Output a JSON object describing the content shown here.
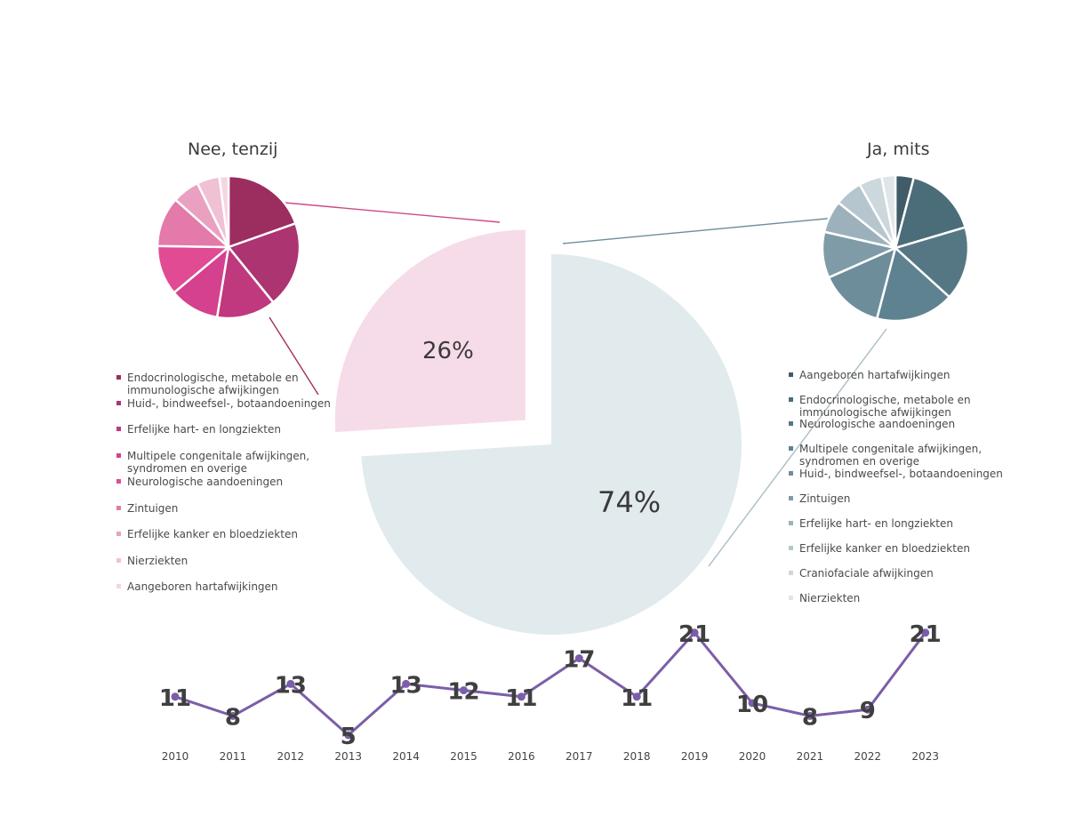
{
  "chart_data": [
    {
      "type": "pie",
      "title": "",
      "slices": [
        {
          "label": "",
          "value": 26,
          "display": "26%",
          "color": "#f6dbe8"
        },
        {
          "label": "",
          "value": 74,
          "display": "74%",
          "color": "#e1eaed"
        }
      ]
    },
    {
      "type": "pie",
      "title": "Nee, tenzij",
      "colors": [
        "#9b2d5f",
        "#ac3470",
        "#c0387e",
        "#d4418e",
        "#e04b94",
        "#e37aa9",
        "#eaa0c0",
        "#f0c0d5",
        "#f4d6e2"
      ],
      "categories": [
        "Endocrinologische, metabole en immunologische afwijkingen",
        "Huid-, bindweefsel-, botaandoeningen",
        "Erfelijke hart- en longziekten",
        "Multipele congenitale afwijkingen, syndromen en overige",
        "Neurologische aandoeningen",
        "Zintuigen",
        "Erfelijke kanker en bloedziekten",
        "Nierziekten",
        "Aangeboren hartafwijkingen"
      ],
      "values": [
        19,
        19,
        13,
        11,
        11,
        11,
        6,
        5,
        2
      ]
    },
    {
      "type": "pie",
      "title": "Ja, mits",
      "colors": [
        "#3f5c68",
        "#4b6c79",
        "#557783",
        "#5f8290",
        "#6d8d9a",
        "#7f9ba7",
        "#9cb1bb",
        "#b6c6ce",
        "#cdd8dd",
        "#dfe6e9"
      ],
      "categories": [
        "Aangeboren hartafwijkingen",
        "Endocrinologische, metabole en immunologische afwijkingen",
        "Neurologische aandoeningen",
        "Multipele congenitale afwijkingen, syndromen en overige",
        "Huid-, bindweefsel-, botaandoeningen",
        "Zintuigen",
        "Erfelijke hart- en longziekten",
        "Erfelijke kanker en bloedziekten",
        "Craniofaciale afwijkingen",
        "Nierziekten"
      ],
      "values": [
        4,
        16,
        16,
        17,
        14,
        10,
        7,
        6,
        5,
        3
      ]
    },
    {
      "type": "line",
      "title": "",
      "x": [
        "2010",
        "2011",
        "2012",
        "2013",
        "2014",
        "2015",
        "2016",
        "2017",
        "2018",
        "2019",
        "2020",
        "2021",
        "2022",
        "2023"
      ],
      "y": [
        11,
        8,
        13,
        5,
        13,
        12,
        11,
        17,
        11,
        21,
        10,
        8,
        9,
        21
      ],
      "color": "#7b5ea8"
    }
  ]
}
